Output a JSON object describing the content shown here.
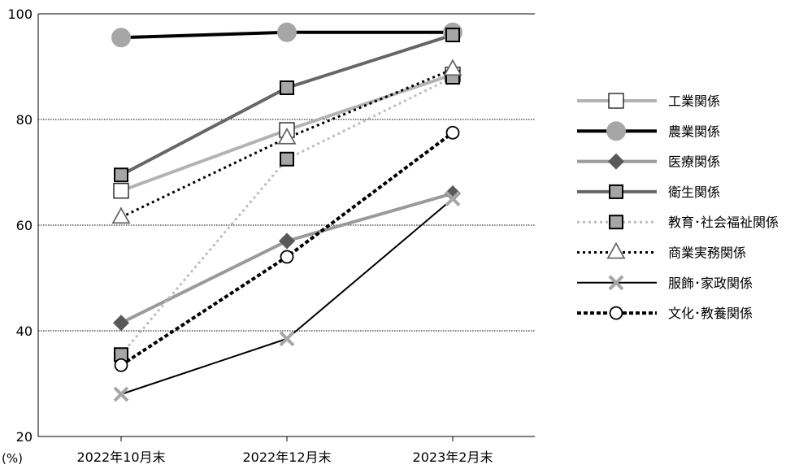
{
  "chart_data": {
    "type": "line",
    "title": "",
    "ylabel": "(%)",
    "xlabel": "",
    "ylim": [
      20,
      100
    ],
    "yticks": [
      20,
      40,
      60,
      80,
      100
    ],
    "grid": "horizontal dotted at 40, 60, 80",
    "legend_position": "right",
    "categories": [
      "2022年10月末",
      "2022年12月末",
      "2023年2月末"
    ],
    "series": [
      {
        "name": "工業関係",
        "values": [
          66.5,
          78,
          88.5
        ],
        "color": "#b3b3b3",
        "dash": "solid",
        "marker": "square-open",
        "width": 4
      },
      {
        "name": "農業関係",
        "values": [
          95.5,
          96.5,
          96.5
        ],
        "color": "#000000",
        "dash": "solid",
        "marker": "circle-gray",
        "width": 4
      },
      {
        "name": "医療関係",
        "values": [
          41.5,
          57,
          66
        ],
        "color": "#9a9a9a",
        "dash": "solid",
        "marker": "diamond",
        "width": 4
      },
      {
        "name": "衛生関係",
        "values": [
          69.5,
          86,
          96
        ],
        "color": "#666666",
        "dash": "solid",
        "marker": "square-gray",
        "width": 4
      },
      {
        "name": "教育･社会福祉関係",
        "values": [
          35.5,
          72.5,
          88
        ],
        "color": "#bdbdbd",
        "dash": "dotted",
        "marker": "square-gray",
        "width": 3
      },
      {
        "name": "商業実務関係",
        "values": [
          61.5,
          76.5,
          89.5
        ],
        "color": "#000000",
        "dash": "dotted",
        "marker": "triangle-open",
        "width": 3
      },
      {
        "name": "服飾･家政関係",
        "values": [
          28,
          38.5,
          65
        ],
        "color": "#000000",
        "dash": "solid",
        "marker": "x-gray",
        "width": 2
      },
      {
        "name": "文化･教養関係",
        "values": [
          33.5,
          54,
          77.5
        ],
        "color": "#000000",
        "dash": "dashed",
        "marker": "circle-open",
        "width": 4
      }
    ]
  }
}
